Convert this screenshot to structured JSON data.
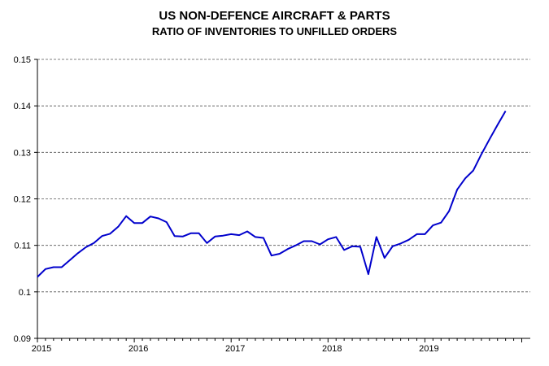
{
  "chart_data": {
    "type": "line",
    "title": "US NON-DEFENCE AIRCRAFT & PARTS",
    "subtitle": "RATIO OF INVENTORIES TO UNFILLED ORDERS",
    "xlabel": "",
    "ylabel": "",
    "ylim": [
      0.09,
      0.15
    ],
    "yticks": [
      "0.09",
      "0.1",
      "0.11",
      "0.12",
      "0.13",
      "0.14",
      "0.15"
    ],
    "xticks": [
      "2015",
      "2016",
      "2017",
      "2018",
      "2019"
    ],
    "grid": "horizontal dashed",
    "line_color": "#0000cc",
    "series": [
      {
        "x": [
          "2015-01",
          "2015-02",
          "2015-03",
          "2015-04",
          "2015-05",
          "2015-06",
          "2015-07",
          "2015-08",
          "2015-09",
          "2015-10",
          "2015-11",
          "2015-12",
          "2016-01",
          "2016-02",
          "2016-03",
          "2016-04",
          "2016-05",
          "2016-06",
          "2016-07",
          "2016-08",
          "2016-09",
          "2016-10",
          "2016-11",
          "2016-12",
          "2017-01",
          "2017-02",
          "2017-03",
          "2017-04",
          "2017-05",
          "2017-06",
          "2017-07",
          "2017-08",
          "2017-09",
          "2017-10",
          "2017-11",
          "2017-12",
          "2018-01",
          "2018-02",
          "2018-03",
          "2018-04",
          "2018-05",
          "2018-06",
          "2018-07",
          "2018-08",
          "2018-09",
          "2018-10",
          "2018-11",
          "2018-12",
          "2019-01",
          "2019-02",
          "2019-03",
          "2019-04",
          "2019-05",
          "2019-06",
          "2019-07",
          "2019-08",
          "2019-09",
          "2019-10",
          "2019-11"
        ],
        "values": [
          0.1032,
          0.1049,
          0.1053,
          0.1053,
          0.1068,
          0.1083,
          0.1096,
          0.1105,
          0.112,
          0.1125,
          0.114,
          0.1163,
          0.1148,
          0.1148,
          0.1162,
          0.1158,
          0.115,
          0.112,
          0.1119,
          0.1126,
          0.1126,
          0.1105,
          0.1119,
          0.1121,
          0.1124,
          0.1122,
          0.113,
          0.1118,
          0.1116,
          0.1078,
          0.1082,
          0.1092,
          0.11,
          0.1109,
          0.1109,
          0.1102,
          0.1113,
          0.1118,
          0.109,
          0.1098,
          0.1097,
          0.1038,
          0.1118,
          0.1073,
          0.1098,
          0.1104,
          0.1112,
          0.1124,
          0.1124,
          0.1143,
          0.1149,
          0.1174,
          0.122,
          0.1244,
          0.1261,
          0.1296,
          0.1328,
          0.1359,
          0.1389
        ]
      }
    ]
  }
}
